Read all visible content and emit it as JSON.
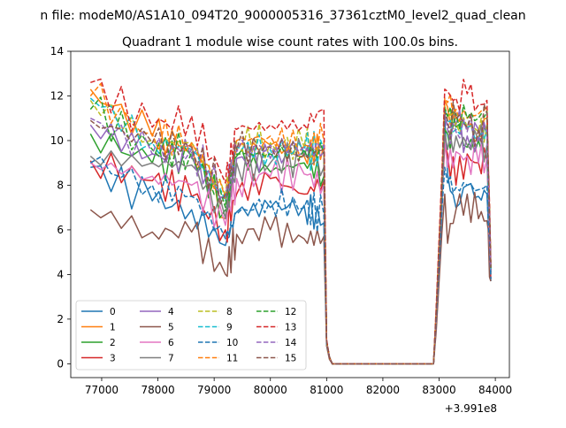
{
  "chart_data": {
    "type": "line",
    "suptitle": "n file: modeM0/AS1A10_094T20_9000005316_37361cztM0_level2_quad_clean",
    "title": "Quadrant 1 module wise count rates with 100.0s bins.",
    "xlabel": "",
    "ylabel": "",
    "x_offset_label": "+3.991e8",
    "xlim": [
      76450,
      84250
    ],
    "ylim": [
      -0.62,
      14.0
    ],
    "xticks": [
      77000,
      78000,
      79000,
      80000,
      81000,
      82000,
      83000,
      84000
    ],
    "xtick_labels": [
      "77000",
      "78000",
      "79000",
      "80000",
      "81000",
      "82000",
      "83000",
      "84000"
    ],
    "yticks": [
      0,
      2,
      4,
      6,
      8,
      10,
      12,
      14
    ],
    "ytick_labels": [
      "0",
      "2",
      "4",
      "6",
      "8",
      "10",
      "12",
      "14"
    ],
    "grid": false,
    "legend_position": "lower-left",
    "legend_columns": 4,
    "segments": {
      "seg1_x": [
        76800,
        77900,
        78600,
        79200,
        79400,
        80000,
        80600,
        80950
      ],
      "seg2_x": [
        80950,
        81000,
        81050,
        81100,
        81200,
        82900,
        82950,
        83050,
        83100,
        83150
      ],
      "seg3_x": [
        83150,
        83300,
        83500,
        83700,
        83850,
        83920
      ]
    },
    "series": [
      {
        "name": "0",
        "color": "#1f77b4",
        "dash": "solid",
        "seg1": [
          8.8,
          7.3,
          6.9,
          5.3,
          6.8,
          7.0,
          7.1,
          6.3
        ],
        "seg2": [
          6.3,
          1.0,
          0.3,
          0,
          0,
          0,
          2.0,
          7.0,
          11.0,
          8.5
        ],
        "seg3": [
          8.5,
          7.0,
          8.0,
          7.5,
          7.6,
          3.7
        ]
      },
      {
        "name": "1",
        "color": "#ff7f0e",
        "dash": "solid",
        "seg1": [
          12.3,
          10.2,
          9.8,
          6.5,
          9.6,
          9.8,
          9.3,
          9.8
        ],
        "seg2": [
          9.8,
          1.0,
          0.3,
          0,
          0,
          0,
          2.3,
          8.0,
          11.8,
          11.5
        ],
        "seg3": [
          11.5,
          11.0,
          10.5,
          10.2,
          11.0,
          4.2
        ]
      },
      {
        "name": "2",
        "color": "#2ca02c",
        "dash": "solid",
        "seg1": [
          10.3,
          9.0,
          9.3,
          6.9,
          9.3,
          8.6,
          9.0,
          8.4
        ],
        "seg2": [
          8.4,
          0.9,
          0.3,
          0,
          0,
          0,
          2.1,
          7.6,
          10.5,
          10.3
        ],
        "seg3": [
          10.3,
          10.6,
          9.7,
          10.0,
          10.3,
          4.0
        ]
      },
      {
        "name": "3",
        "color": "#d62728",
        "dash": "solid",
        "seg1": [
          9.1,
          8.2,
          7.5,
          6.0,
          7.6,
          8.3,
          7.6,
          8.2
        ],
        "seg2": [
          8.2,
          0.9,
          0.3,
          0,
          0,
          0,
          2.0,
          7.4,
          9.8,
          9.4
        ],
        "seg3": [
          9.4,
          8.0,
          9.4,
          9.0,
          9.1,
          3.8
        ]
      },
      {
        "name": "4",
        "color": "#9467bd",
        "dash": "solid",
        "seg1": [
          10.7,
          9.4,
          9.2,
          7.5,
          9.2,
          9.2,
          9.5,
          9.5
        ],
        "seg2": [
          9.5,
          0.9,
          0.3,
          0,
          0,
          0,
          2.2,
          7.8,
          11.0,
          10.7
        ],
        "seg3": [
          10.7,
          10.7,
          10.2,
          10.5,
          10.3,
          4.1
        ]
      },
      {
        "name": "5",
        "color": "#8c564b",
        "dash": "solid",
        "seg1": [
          6.9,
          5.9,
          5.9,
          4.0,
          5.8,
          6.0,
          5.6,
          5.7
        ],
        "seg2": [
          5.7,
          0.8,
          0.2,
          0,
          0,
          0,
          1.5,
          5.9,
          7.6,
          5.4
        ],
        "seg3": [
          5.4,
          6.9,
          7.6,
          6.5,
          6.4,
          3.7
        ]
      },
      {
        "name": "6",
        "color": "#e377c2",
        "dash": "solid",
        "seg1": [
          9.0,
          8.4,
          8.0,
          6.2,
          8.3,
          8.4,
          8.5,
          8.0
        ],
        "seg2": [
          8.0,
          0.9,
          0.3,
          0,
          0,
          0,
          2.0,
          7.4,
          10.0,
          8.8
        ],
        "seg3": [
          8.8,
          9.5,
          9.3,
          9.0,
          9.2,
          4.0
        ]
      },
      {
        "name": "7",
        "color": "#7f7f7f",
        "dash": "solid",
        "seg1": [
          9.3,
          9.0,
          8.9,
          6.5,
          9.0,
          9.0,
          9.3,
          8.8
        ],
        "seg2": [
          8.8,
          0.9,
          0.3,
          0,
          0,
          0,
          2.1,
          7.5,
          10.3,
          9.6
        ],
        "seg3": [
          9.6,
          10.2,
          9.8,
          10.0,
          9.8,
          4.1
        ]
      },
      {
        "name": "8",
        "color": "#bcbd22",
        "dash": "dashed",
        "seg1": [
          11.8,
          10.0,
          9.9,
          7.5,
          10.0,
          9.9,
          9.7,
          9.8
        ],
        "seg2": [
          9.8,
          1.0,
          0.3,
          0,
          0,
          0,
          2.3,
          8.1,
          11.6,
          11.0
        ],
        "seg3": [
          11.0,
          10.8,
          10.6,
          10.4,
          10.7,
          4.3
        ]
      },
      {
        "name": "9",
        "color": "#17becf",
        "dash": "dashed",
        "seg1": [
          11.9,
          9.9,
          9.6,
          7.3,
          9.7,
          9.6,
          9.5,
          9.6
        ],
        "seg2": [
          9.6,
          1.0,
          0.3,
          0,
          0,
          0,
          2.3,
          8.0,
          11.5,
          10.8
        ],
        "seg3": [
          10.8,
          10.5,
          10.6,
          10.1,
          10.5,
          4.2
        ]
      },
      {
        "name": "10",
        "color": "#1f77b4",
        "dash": "dashed",
        "seg1": [
          9.0,
          8.0,
          7.5,
          5.6,
          6.7,
          7.3,
          7.0,
          6.7
        ],
        "seg2": [
          6.7,
          0.9,
          0.3,
          0,
          0,
          0,
          2.0,
          6.9,
          8.8,
          8.1
        ],
        "seg3": [
          8.1,
          7.9,
          8.0,
          7.8,
          8.0,
          3.8
        ]
      },
      {
        "name": "11",
        "color": "#ff7f0e",
        "dash": "dashed",
        "seg1": [
          12.0,
          10.3,
          9.9,
          7.4,
          10.0,
          10.2,
          9.8,
          10.0
        ],
        "seg2": [
          10.0,
          1.0,
          0.3,
          0,
          0,
          0,
          2.4,
          8.3,
          11.9,
          11.7
        ],
        "seg3": [
          11.7,
          11.4,
          11.0,
          11.2,
          11.5,
          4.4
        ]
      },
      {
        "name": "12",
        "color": "#2ca02c",
        "dash": "dashed",
        "seg1": [
          11.4,
          9.6,
          9.5,
          7.0,
          9.4,
          9.4,
          9.6,
          9.4
        ],
        "seg2": [
          9.4,
          1.0,
          0.3,
          0,
          0,
          0,
          2.3,
          8.0,
          11.4,
          11.1
        ],
        "seg3": [
          11.1,
          11.2,
          11.0,
          11.0,
          11.3,
          4.3
        ]
      },
      {
        "name": "13",
        "color": "#d62728",
        "dash": "dashed",
        "seg1": [
          12.6,
          10.6,
          11.1,
          8.1,
          10.5,
          10.7,
          10.7,
          11.4
        ],
        "seg2": [
          11.4,
          1.1,
          0.3,
          0,
          0,
          0,
          2.6,
          8.6,
          12.3,
          12.2
        ],
        "seg3": [
          12.2,
          11.9,
          12.1,
          11.6,
          11.8,
          4.5
        ]
      },
      {
        "name": "14",
        "color": "#9467bd",
        "dash": "dashed",
        "seg1": [
          11.0,
          9.4,
          9.6,
          7.5,
          9.5,
          9.8,
          9.7,
          9.8
        ],
        "seg2": [
          9.8,
          1.0,
          0.3,
          0,
          0,
          0,
          2.2,
          7.9,
          11.2,
          10.5
        ],
        "seg3": [
          10.5,
          10.4,
          10.4,
          10.2,
          10.5,
          4.2
        ]
      },
      {
        "name": "15",
        "color": "#8c564b",
        "dash": "dashed",
        "seg1": [
          10.9,
          9.9,
          9.7,
          7.6,
          9.6,
          9.7,
          9.4,
          9.6
        ],
        "seg2": [
          9.6,
          1.0,
          0.3,
          0,
          0,
          0,
          2.3,
          8.0,
          11.3,
          10.9
        ],
        "seg3": [
          10.9,
          11.0,
          10.6,
          10.5,
          11.2,
          4.3
        ]
      }
    ]
  }
}
